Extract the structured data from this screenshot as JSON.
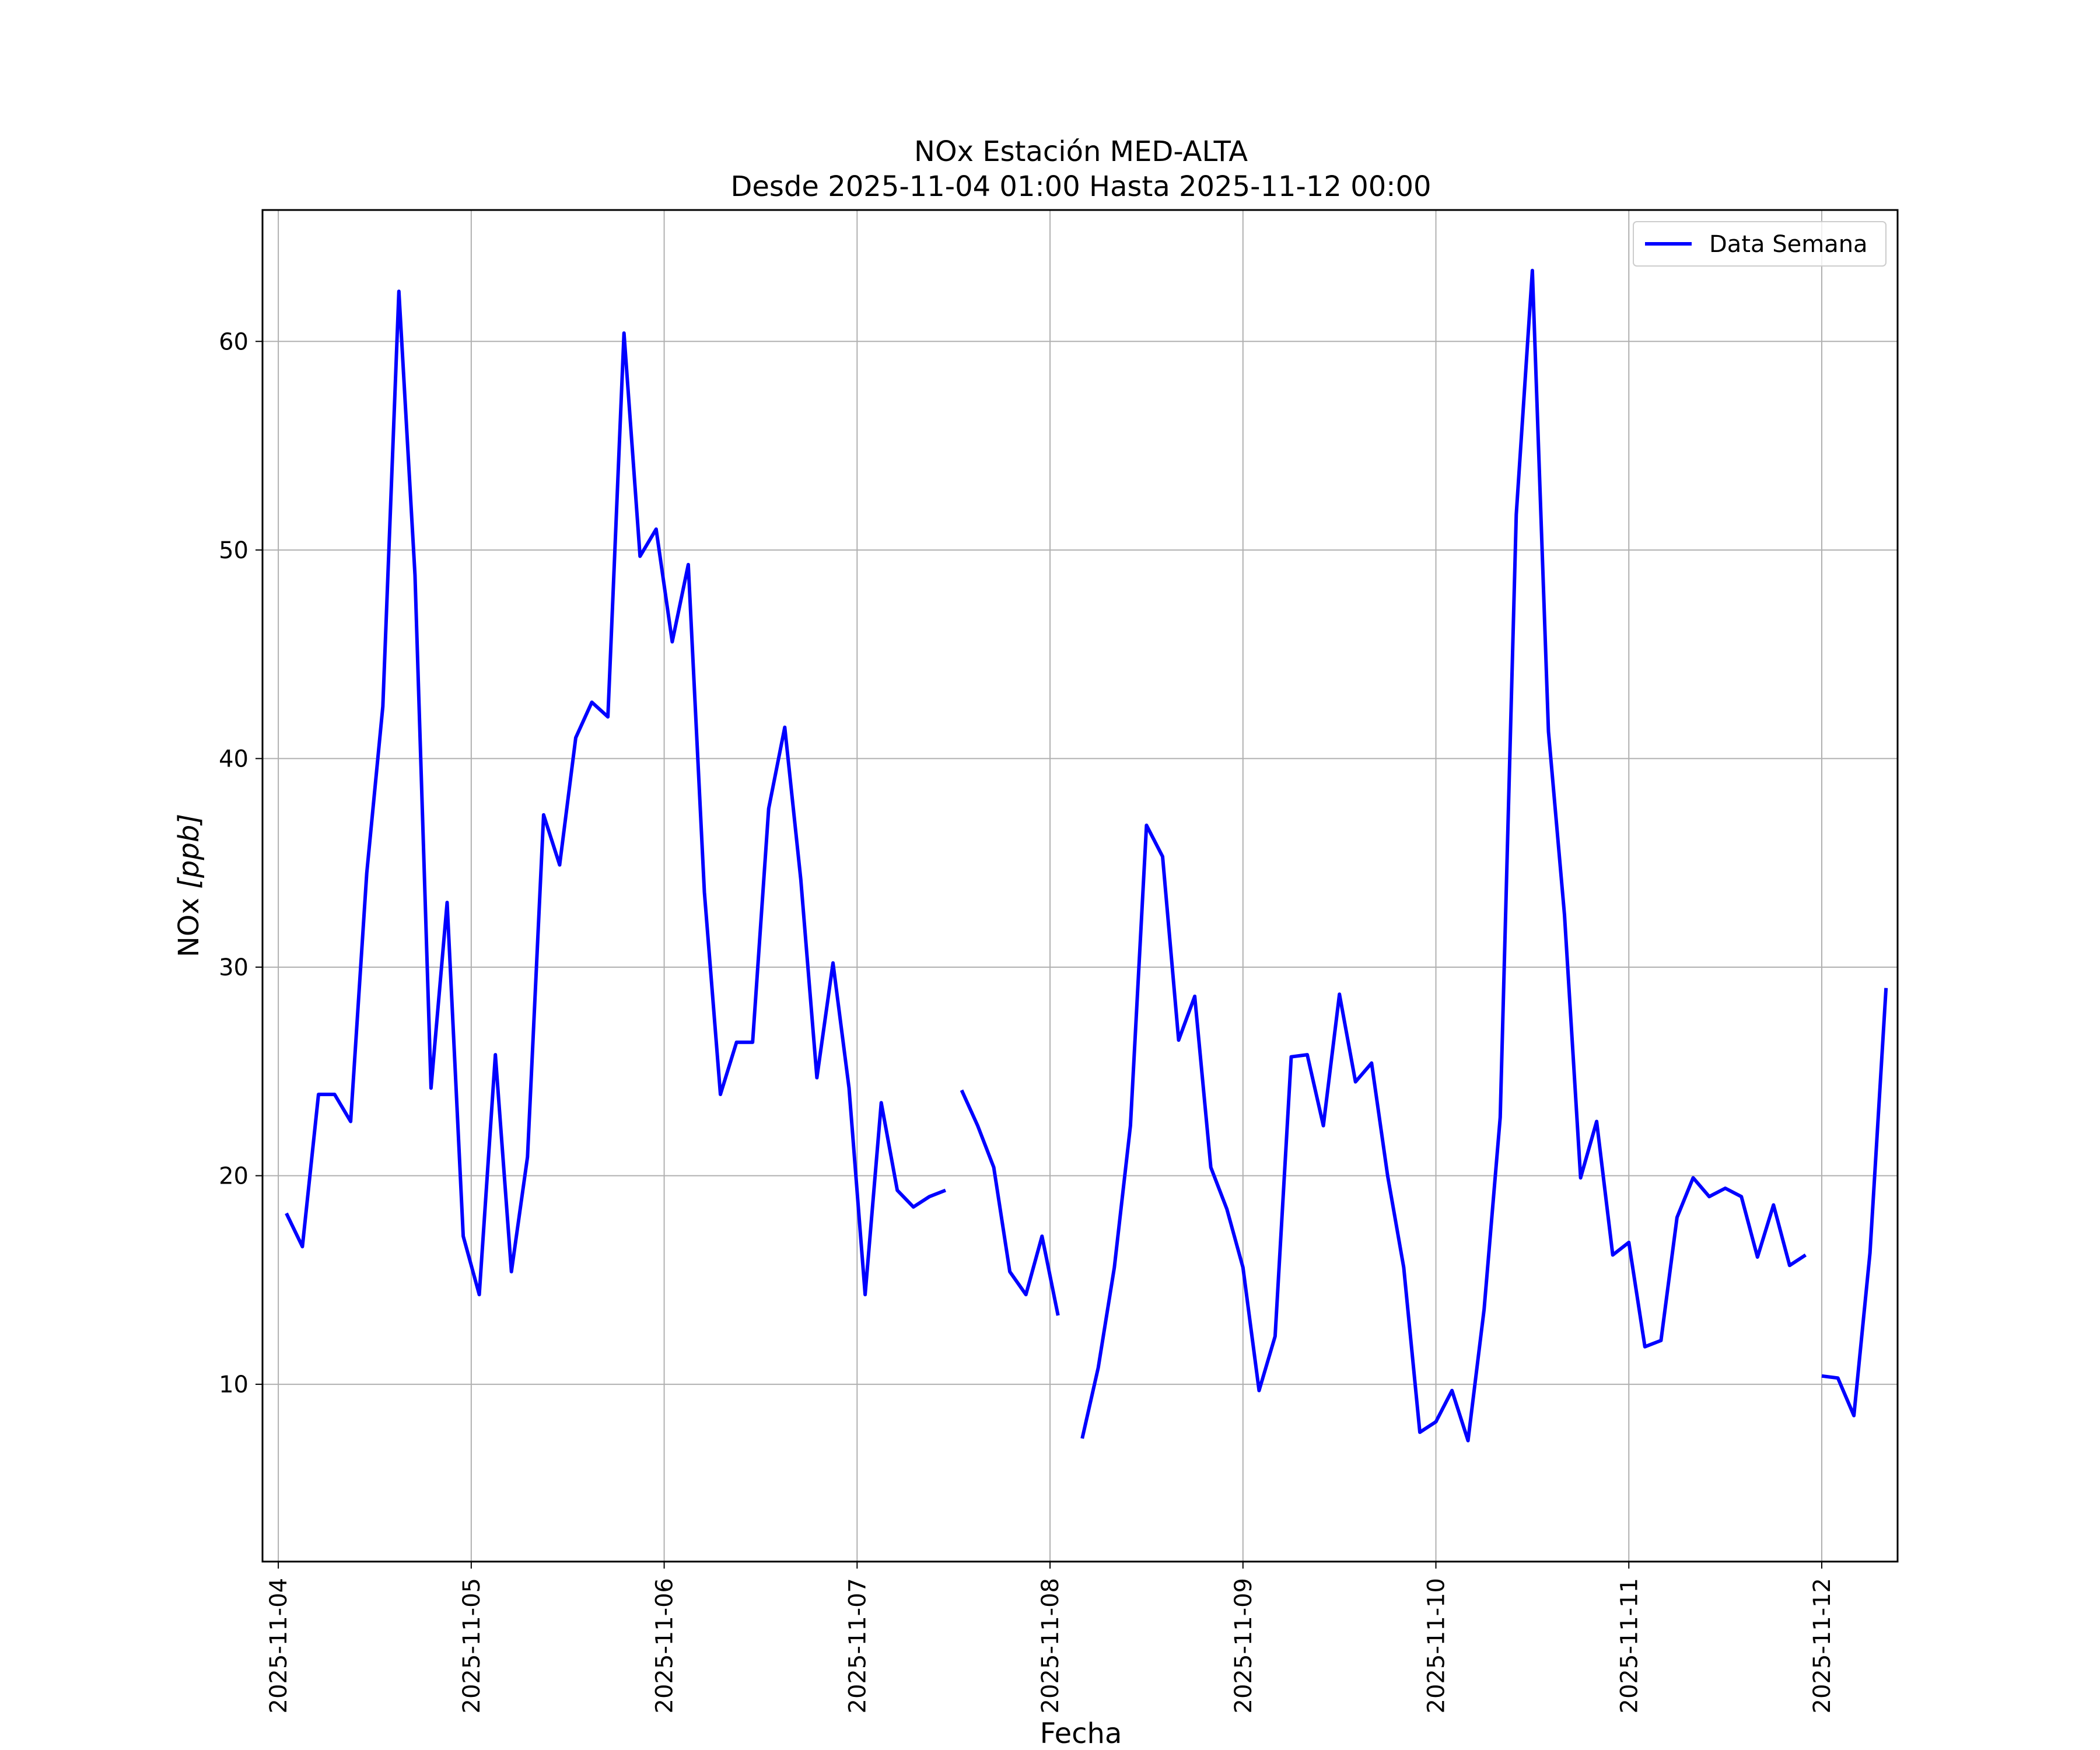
{
  "chart_data": {
    "type": "line",
    "title": "NOx Estación MED-ALTA",
    "subtitle": "Desde 2025-11-04 01:00 Hasta 2025-11-12 00:00",
    "xlabel": "Fecha",
    "ylabel": "NOx [ppb]",
    "ylabel_main": "NOx ",
    "ylabel_unit": "[ppb]",
    "x_axis": {
      "type": "date",
      "range": [
        "2025-11-03 22:02",
        "2025-11-12 09:26"
      ]
    },
    "ylim": [
      1.5,
      66.3
    ],
    "x_tick_labels": [
      "2025-11-04",
      "2025-11-05",
      "2025-11-06",
      "2025-11-07",
      "2025-11-08",
      "2025-11-09",
      "2025-11-10",
      "2025-11-11",
      "2025-11-12"
    ],
    "y_tick_labels": [
      "10",
      "20",
      "30",
      "40",
      "50",
      "60"
    ],
    "y_ticks": [
      10,
      20,
      30,
      40,
      50,
      60
    ],
    "grid": true,
    "legend": {
      "position": "top-right",
      "entries": [
        "Data Semana"
      ]
    },
    "colors": {
      "series": "#0000ff",
      "grid": "#b0b0b0",
      "axes": "#000000"
    },
    "series": [
      {
        "name": "Data Semana",
        "segments": [
          {
            "x": [
              "2025-11-04 01:00",
              "2025-11-04 03:00",
              "2025-11-04 05:00",
              "2025-11-04 07:00",
              "2025-11-04 09:00",
              "2025-11-04 11:00",
              "2025-11-04 13:00",
              "2025-11-04 15:00",
              "2025-11-04 17:00",
              "2025-11-04 19:00",
              "2025-11-04 21:00",
              "2025-11-04 23:00",
              "2025-11-05 01:00",
              "2025-11-05 03:00",
              "2025-11-05 05:00",
              "2025-11-05 07:00",
              "2025-11-05 09:00",
              "2025-11-05 11:00",
              "2025-11-05 13:00",
              "2025-11-05 15:00",
              "2025-11-05 17:00",
              "2025-11-05 19:00",
              "2025-11-05 21:00",
              "2025-11-05 23:00",
              "2025-11-06 01:00",
              "2025-11-06 03:00",
              "2025-11-06 05:00",
              "2025-11-06 07:00",
              "2025-11-06 09:00",
              "2025-11-06 11:00",
              "2025-11-06 13:00",
              "2025-11-06 15:00",
              "2025-11-06 17:00",
              "2025-11-06 19:00",
              "2025-11-06 21:00",
              "2025-11-06 23:00",
              "2025-11-07 01:00",
              "2025-11-07 03:00",
              "2025-11-07 05:00",
              "2025-11-07 07:00",
              "2025-11-07 09:00",
              "2025-11-07 11:00"
            ],
            "y": [
              18.2,
              16.6,
              23.9,
              23.9,
              22.6,
              34.5,
              42.5,
              62.4,
              48.8,
              24.2,
              33.1,
              17.1,
              14.3,
              25.8,
              15.4,
              20.9,
              37.3,
              34.9,
              41.0,
              42.7,
              42.0,
              60.4,
              49.7,
              51.0,
              45.6,
              49.3,
              33.6,
              23.9,
              26.4,
              26.4,
              37.6,
              41.5,
              34.2,
              24.7,
              30.2,
              24.2,
              14.3,
              23.5,
              19.3,
              18.5,
              19.0,
              19.3
            ]
          },
          {
            "x": [
              "2025-11-07 13:00",
              "2025-11-07 15:00",
              "2025-11-07 17:00",
              "2025-11-07 19:00",
              "2025-11-07 21:00",
              "2025-11-07 23:00",
              "2025-11-08 01:00"
            ],
            "y": [
              24.1,
              22.4,
              20.4,
              15.4,
              14.3,
              17.1,
              13.3
            ]
          },
          {
            "x": [
              "2025-11-08 04:00",
              "2025-11-08 06:00",
              "2025-11-08 08:00",
              "2025-11-08 10:00",
              "2025-11-08 12:00",
              "2025-11-08 14:00",
              "2025-11-08 16:00",
              "2025-11-08 18:00",
              "2025-11-08 20:00",
              "2025-11-08 22:00",
              "2025-11-09 00:00",
              "2025-11-09 02:00",
              "2025-11-09 04:00",
              "2025-11-09 06:00",
              "2025-11-09 08:00",
              "2025-11-09 10:00",
              "2025-11-09 12:00",
              "2025-11-09 14:00",
              "2025-11-09 16:00",
              "2025-11-09 18:00",
              "2025-11-09 20:00",
              "2025-11-09 22:00",
              "2025-11-10 00:00",
              "2025-11-10 02:00",
              "2025-11-10 04:00",
              "2025-11-10 06:00",
              "2025-11-10 08:00",
              "2025-11-10 10:00",
              "2025-11-10 12:00",
              "2025-11-10 14:00",
              "2025-11-10 16:00",
              "2025-11-10 18:00",
              "2025-11-10 20:00",
              "2025-11-10 22:00",
              "2025-11-11 00:00",
              "2025-11-11 02:00",
              "2025-11-11 04:00",
              "2025-11-11 06:00",
              "2025-11-11 08:00",
              "2025-11-11 10:00",
              "2025-11-11 12:00",
              "2025-11-11 14:00",
              "2025-11-11 16:00",
              "2025-11-11 18:00",
              "2025-11-11 20:00",
              "2025-11-11 22:00"
            ],
            "y": [
              7.4,
              10.8,
              15.6,
              22.4,
              36.8,
              35.3,
              26.5,
              28.6,
              20.4,
              18.4,
              15.6,
              9.7,
              12.3,
              25.7,
              25.8,
              22.4,
              28.7,
              24.5,
              25.4,
              20.0,
              15.6,
              7.7,
              8.2,
              9.7,
              7.3,
              13.6,
              22.8,
              51.7,
              63.4,
              41.3,
              32.5,
              19.9,
              22.6,
              16.2,
              16.8,
              11.8,
              12.1,
              18.0,
              19.9,
              19.0,
              19.4,
              19.0,
              16.1,
              18.6,
              15.7,
              16.2
            ]
          },
          {
            "x": [
              "2025-11-12 00:00",
              "2025-11-12 02:00",
              "2025-11-12 04:00",
              "2025-11-12 06:00",
              "2025-11-12 08:00"
            ],
            "y": [
              10.4,
              10.3,
              8.5,
              16.3,
              29.0
            ]
          }
        ]
      }
    ]
  }
}
